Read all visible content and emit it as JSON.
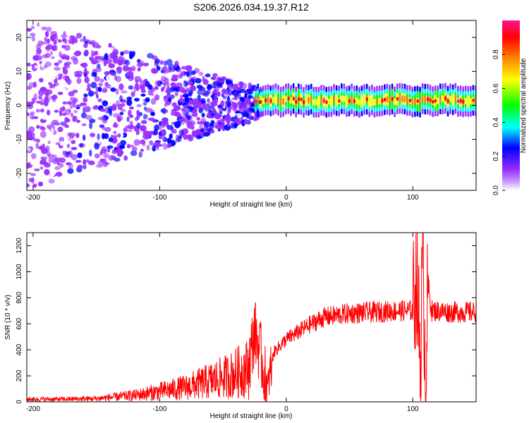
{
  "title": "S206.2026.034.19.37.R12",
  "chart_data": [
    {
      "type": "heatmap",
      "title": "S206.2026.034.19.37.R12",
      "xlabel": "Height of straight line (km)",
      "ylabel": "Frequency (Hz)",
      "xlim": [
        -205,
        150
      ],
      "ylim": [
        -25,
        25
      ],
      "x_ticks": [
        -200,
        -100,
        0,
        100
      ],
      "y_ticks": [
        -20,
        -10,
        0,
        10,
        20
      ],
      "colorbar": {
        "label": "Normalized spectral amplitude",
        "range": [
          0,
          1
        ],
        "ticks": [
          0.0,
          0.2,
          0.4,
          0.6,
          0.8
        ],
        "colors": [
          "#ffffff",
          "#9b30ff",
          "#0000ff",
          "#00ffff",
          "#00ff00",
          "#ffff00",
          "#ff8000",
          "#ff0000",
          "#ff1493"
        ]
      },
      "description_values": {
        "band_center_hz": 1.5,
        "band_start_km": -25,
        "noise_region_km": [
          -205,
          -25
        ]
      }
    },
    {
      "type": "line",
      "xlabel": "Height of straight line (km)",
      "ylabel": "SNR (10 * v/v)",
      "xlim": [
        -205,
        150
      ],
      "ylim": [
        0,
        1300
      ],
      "x_ticks": [
        -200,
        -100,
        0,
        100
      ],
      "y_ticks": [
        0,
        200,
        400,
        600,
        800,
        1000,
        1200
      ],
      "series": [
        {
          "name": "SNR",
          "color": "#ff0000",
          "x": [
            -205,
            -180,
            -150,
            -120,
            -100,
            -80,
            -60,
            -45,
            -30,
            -25,
            -20,
            -15,
            -10,
            0,
            10,
            20,
            30,
            50,
            70,
            90,
            100,
            103,
            106,
            108,
            110,
            112,
            115,
            130,
            150
          ],
          "y": [
            20,
            20,
            25,
            50,
            80,
            110,
            160,
            200,
            260,
            550,
            350,
            90,
            380,
            480,
            540,
            600,
            650,
            680,
            690,
            700,
            700,
            1000,
            300,
            1250,
            150,
            900,
            700,
            690,
            690
          ]
        }
      ]
    }
  ]
}
